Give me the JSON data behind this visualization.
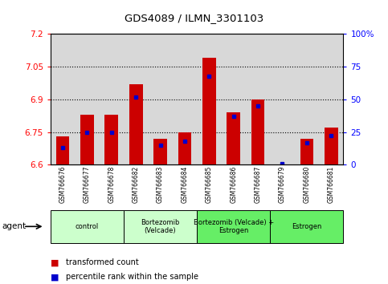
{
  "title": "GDS4089 / ILMN_3301103",
  "samples": [
    "GSM766676",
    "GSM766677",
    "GSM766678",
    "GSM766682",
    "GSM766683",
    "GSM766684",
    "GSM766685",
    "GSM766686",
    "GSM766687",
    "GSM766679",
    "GSM766680",
    "GSM766681"
  ],
  "transformed_counts": [
    6.73,
    6.83,
    6.83,
    6.97,
    6.72,
    6.75,
    7.09,
    6.84,
    6.9,
    6.6,
    6.72,
    6.77
  ],
  "percentile_ranks": [
    13,
    25,
    25,
    52,
    15,
    18,
    68,
    37,
    45,
    1,
    17,
    22
  ],
  "y_min": 6.6,
  "y_max": 7.2,
  "y_ticks": [
    6.6,
    6.75,
    6.9,
    7.05,
    7.2
  ],
  "y_tick_labels": [
    "6.6",
    "6.75",
    "6.9",
    "7.05",
    "7.2"
  ],
  "right_y_ticks": [
    0,
    25,
    50,
    75,
    100
  ],
  "right_y_labels": [
    "0",
    "25",
    "50",
    "75",
    "100%"
  ],
  "groups": [
    {
      "label": "control",
      "start": 0,
      "end": 3,
      "color": "#ccffcc"
    },
    {
      "label": "Bortezomib\n(Velcade)",
      "start": 3,
      "end": 6,
      "color": "#ccffcc"
    },
    {
      "label": "Bortezomib (Velcade) +\nEstrogen",
      "start": 6,
      "end": 9,
      "color": "#66ee66"
    },
    {
      "label": "Estrogen",
      "start": 9,
      "end": 12,
      "color": "#66ee66"
    }
  ],
  "bar_color_red": "#cc0000",
  "bar_color_blue": "#0000cc",
  "bar_width": 0.55,
  "agent_label": "agent",
  "legend_red": "transformed count",
  "legend_blue": "percentile rank within the sample",
  "col_bg": "#d8d8d8",
  "plot_bg": "#ffffff",
  "grid_color": "#000000"
}
